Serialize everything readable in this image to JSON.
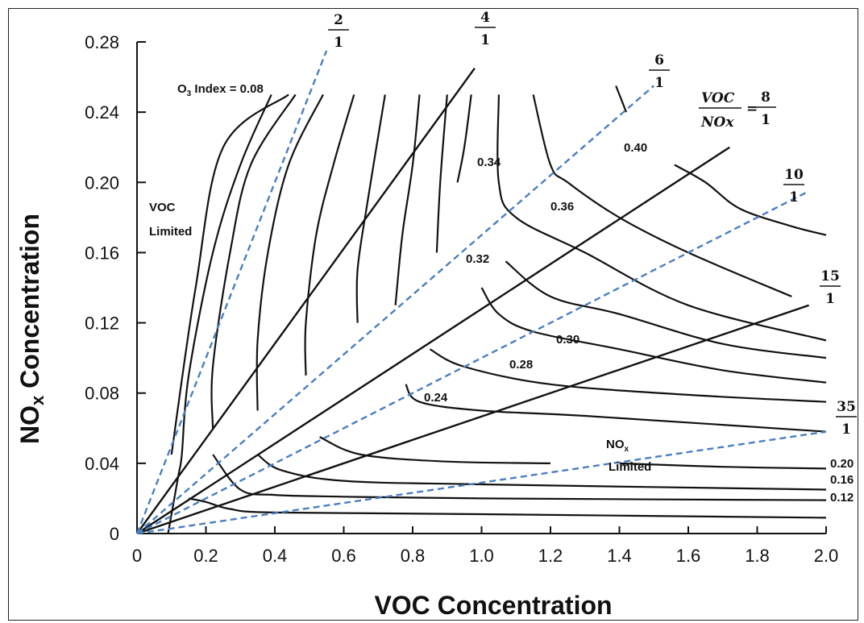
{
  "chart_data": {
    "type": "line",
    "title": "",
    "xlabel": "VOC Concentration",
    "ylabel_main": "NO",
    "ylabel_sub": "x",
    "ylabel_rest": " Concentration",
    "xlim": [
      0,
      2.0
    ],
    "ylim": [
      0,
      0.28
    ],
    "x_ticks": [
      "0",
      "0.2",
      "0.4",
      "0.6",
      "0.8",
      "1.0",
      "1.2",
      "1.4",
      "1.6",
      "1.8",
      "2.0"
    ],
    "y_ticks": [
      "0",
      "0.04",
      "0.08",
      "0.12",
      "0.16",
      "0.20",
      "0.24",
      "0.28"
    ],
    "grid": false,
    "ozone_isopleths": [
      {
        "label": "0.08",
        "points": [
          [
            0.1,
            0.045
          ],
          [
            0.17,
            0.14
          ],
          [
            0.25,
            0.22
          ],
          [
            0.44,
            0.25
          ]
        ]
      },
      {
        "label": "",
        "points": [
          [
            0.09,
            0.0
          ],
          [
            0.12,
            0.033
          ],
          [
            0.13,
            0.045
          ],
          [
            0.15,
            0.09
          ],
          [
            0.22,
            0.16
          ],
          [
            0.3,
            0.21
          ],
          [
            0.39,
            0.25
          ]
        ]
      },
      {
        "label": "",
        "points": [
          [
            0.15,
            0.02
          ],
          [
            0.2,
            0.018
          ],
          [
            0.27,
            0.014
          ],
          [
            0.4,
            0.012
          ],
          [
            1.0,
            0.011
          ],
          [
            2.0,
            0.009
          ]
        ]
      },
      {
        "label": "",
        "points": [
          [
            0.22,
            0.06
          ],
          [
            0.22,
            0.095
          ],
          [
            0.27,
            0.16
          ],
          [
            0.33,
            0.21
          ],
          [
            0.46,
            0.25
          ]
        ]
      },
      {
        "label": "0.12",
        "points": [
          [
            0.22,
            0.045
          ],
          [
            0.3,
            0.025
          ],
          [
            0.4,
            0.022
          ],
          [
            0.6,
            0.021
          ],
          [
            1.0,
            0.02
          ],
          [
            2.0,
            0.019
          ]
        ]
      },
      {
        "label": "",
        "points": [
          [
            0.35,
            0.07
          ],
          [
            0.35,
            0.11
          ],
          [
            0.38,
            0.16
          ],
          [
            0.44,
            0.21
          ],
          [
            0.54,
            0.25
          ]
        ]
      },
      {
        "label": "0.16",
        "points": [
          [
            0.35,
            0.045
          ],
          [
            0.42,
            0.036
          ],
          [
            0.6,
            0.03
          ],
          [
            1.0,
            0.028
          ],
          [
            2.0,
            0.025
          ]
        ]
      },
      {
        "label": "",
        "points": [
          [
            0.49,
            0.09
          ],
          [
            0.49,
            0.12
          ],
          [
            0.52,
            0.17
          ],
          [
            0.57,
            0.21
          ],
          [
            0.63,
            0.25
          ]
        ]
      },
      {
        "label": "0.20",
        "points": [
          [
            0.53,
            0.055
          ],
          [
            0.65,
            0.045
          ],
          [
            0.9,
            0.041
          ],
          [
            1.2,
            0.04
          ]
        ]
      },
      {
        "label": "",
        "points": [
          [
            1.4,
            0.04
          ],
          [
            1.7,
            0.038
          ],
          [
            2.0,
            0.037
          ]
        ]
      },
      {
        "label": "",
        "points": [
          [
            0.64,
            0.12
          ],
          [
            0.64,
            0.15
          ],
          [
            0.67,
            0.19
          ],
          [
            0.72,
            0.25
          ]
        ]
      },
      {
        "label": "0.24",
        "points": [
          [
            0.78,
            0.085
          ],
          [
            0.82,
            0.075
          ],
          [
            1.0,
            0.07
          ],
          [
            1.3,
            0.067
          ],
          [
            2.0,
            0.058
          ]
        ]
      },
      {
        "label": "",
        "points": [
          [
            0.75,
            0.13
          ],
          [
            0.77,
            0.17
          ],
          [
            0.8,
            0.21
          ],
          [
            0.82,
            0.25
          ]
        ]
      },
      {
        "label": "0.28",
        "points": [
          [
            0.85,
            0.105
          ],
          [
            0.95,
            0.095
          ],
          [
            1.2,
            0.085
          ],
          [
            1.6,
            0.079
          ],
          [
            2.0,
            0.075
          ]
        ]
      },
      {
        "label": "",
        "points": [
          [
            0.87,
            0.16
          ],
          [
            0.88,
            0.2
          ],
          [
            0.9,
            0.25
          ]
        ]
      },
      {
        "label": "0.30",
        "points": [
          [
            1.0,
            0.14
          ],
          [
            1.05,
            0.125
          ],
          [
            1.15,
            0.115
          ],
          [
            1.4,
            0.105
          ],
          [
            1.7,
            0.093
          ],
          [
            2.0,
            0.086
          ]
        ]
      },
      {
        "label": "",
        "points": [
          [
            0.93,
            0.2
          ],
          [
            0.95,
            0.22
          ],
          [
            0.97,
            0.25
          ]
        ]
      },
      {
        "label": "0.32",
        "points": [
          [
            1.07,
            0.155
          ],
          [
            1.2,
            0.135
          ],
          [
            1.4,
            0.125
          ],
          [
            1.7,
            0.108
          ],
          [
            2.0,
            0.1
          ]
        ]
      },
      {
        "label": "0.34",
        "points": [
          [
            1.05,
            0.25
          ],
          [
            1.05,
            0.2
          ],
          [
            1.1,
            0.18
          ],
          [
            1.3,
            0.16
          ],
          [
            1.6,
            0.13
          ],
          [
            2.0,
            0.11
          ]
        ]
      },
      {
        "label": "0.36",
        "points": [
          [
            1.15,
            0.25
          ],
          [
            1.2,
            0.21
          ],
          [
            1.25,
            0.2
          ],
          [
            1.4,
            0.18
          ],
          [
            1.6,
            0.16
          ],
          [
            1.9,
            0.135
          ]
        ]
      },
      {
        "label": "0.40",
        "points": [
          [
            1.56,
            0.21
          ],
          [
            1.65,
            0.2
          ],
          [
            1.75,
            0.185
          ],
          [
            1.9,
            0.175
          ],
          [
            2.0,
            0.17
          ]
        ]
      },
      {
        "label": "",
        "points": [
          [
            1.39,
            0.255
          ],
          [
            1.42,
            0.24
          ]
        ]
      }
    ],
    "voc_nox_ratio_lines": [
      {
        "label_num": "4",
        "label_den": "1",
        "style": "solid",
        "end": [
          0.98,
          0.265
        ]
      },
      {
        "label_num": "8",
        "label_den": "1",
        "style": "solid",
        "end": [
          1.72,
          0.22
        ]
      },
      {
        "label_num": "15",
        "label_den": "1",
        "style": "solid",
        "end": [
          1.95,
          0.13
        ]
      },
      {
        "label_num": "2",
        "label_den": "1",
        "style": "dashed",
        "end": [
          0.55,
          0.275
        ]
      },
      {
        "label_num": "6",
        "label_den": "1",
        "style": "dashed",
        "end": [
          1.5,
          0.255
        ]
      },
      {
        "label_num": "10",
        "label_den": "1",
        "style": "dashed",
        "end": [
          1.95,
          0.195
        ]
      },
      {
        "label_num": "35",
        "label_den": "1",
        "style": "dashed",
        "end": [
          2.0,
          0.058
        ]
      }
    ],
    "annotations": {
      "index_prefix": "O",
      "index_sub": "3",
      "index_rest": " Index = 0.08",
      "voc_limited_1": "VOC",
      "voc_limited_2": "Limited",
      "nox_limited_1a": "NO",
      "nox_limited_1b": "x",
      "nox_limited_2": "Limited",
      "ratio_eq_num": "VOC",
      "ratio_eq_den": "NOx",
      "ratio_eq_sign": "="
    },
    "colors": {
      "isopleth": "#111111",
      "ratio_dashed": "#4a7fc1",
      "ratio_solid": "#111111"
    }
  }
}
